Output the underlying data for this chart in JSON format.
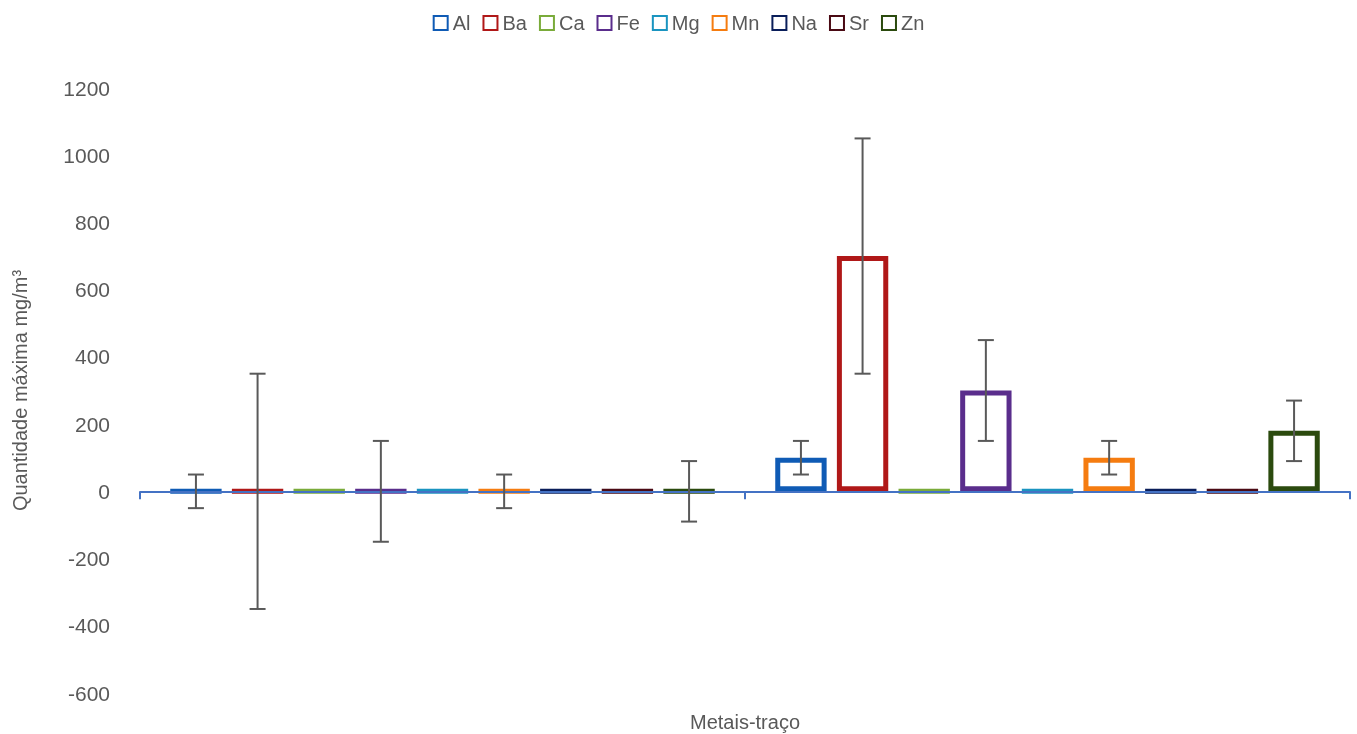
{
  "chart_data": {
    "type": "bar",
    "xlabel": "Metais-traço",
    "ylabel": "Quantidade máxima mg/m³",
    "categories": [
      null,
      null
    ],
    "series": [
      {
        "name": "Al",
        "color": "#0f5bb5",
        "values": [
          0,
          100
        ],
        "errors": [
          50,
          50
        ]
      },
      {
        "name": "Ba",
        "color": "#b01818",
        "values": [
          0,
          700
        ],
        "errors": [
          350,
          350
        ]
      },
      {
        "name": "Ca",
        "color": "#7aab3a",
        "values": [
          0,
          0
        ]
      },
      {
        "name": "Fe",
        "color": "#5a2d8c",
        "values": [
          0,
          300
        ],
        "errors": [
          150,
          150
        ]
      },
      {
        "name": "Mg",
        "color": "#1a94c0",
        "values": [
          0,
          0
        ]
      },
      {
        "name": "Mn",
        "color": "#f57c10",
        "values": [
          0,
          100
        ],
        "errors": [
          50,
          50
        ]
      },
      {
        "name": "Na",
        "color": "#0a1e5a",
        "values": [
          0,
          0
        ]
      },
      {
        "name": "Sr",
        "color": "#4a0a14",
        "values": [
          0,
          0
        ]
      },
      {
        "name": "Zn",
        "color": "#2b4a0e",
        "values": [
          0,
          180
        ],
        "errors": [
          90,
          90
        ]
      }
    ],
    "ylim": [
      -600,
      1200
    ],
    "yticks": [
      -600,
      -400,
      -200,
      0,
      200,
      400,
      600,
      800,
      1000,
      1200
    ],
    "grid": false,
    "legend": "top",
    "ref_lines": [
      {
        "axis": "y",
        "value": 0,
        "color": "#4472c4"
      }
    ]
  }
}
